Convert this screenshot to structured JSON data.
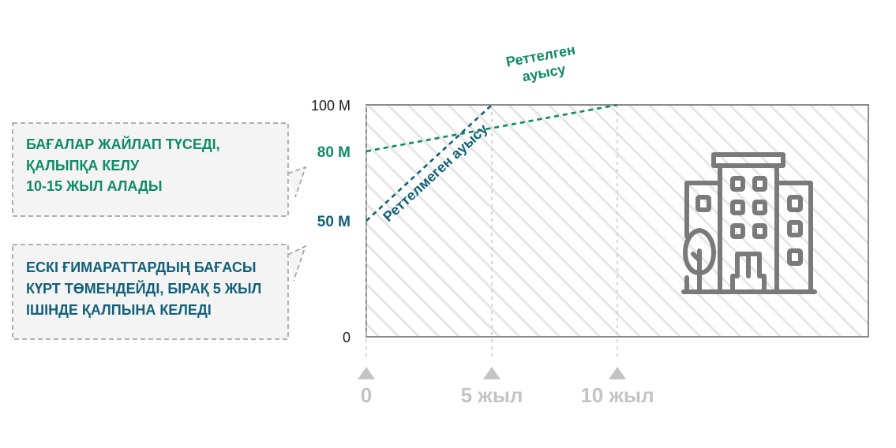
{
  "colors": {
    "adjusted": "#0f8a68",
    "unadjusted": "#12607a",
    "axis": "#8c8c8c",
    "hatch": "#e5e5e5",
    "tick_muted": "#c4c4c4",
    "icon": "#7a7a7a",
    "callout_bg": "#f4f4f4",
    "callout_border": "#9a9a9a"
  },
  "icons": {
    "building": "building-icon",
    "time_marker": "triangle-up-icon"
  },
  "callouts": [
    {
      "color_key": "adjusted",
      "lines": [
        "БАҒАЛАР ЖАЙЛАП ТҮСЕДІ,",
        "ҚАЛЫПҚА КЕЛУ",
        "10-15 ЖЫЛ АЛАДЫ"
      ]
    },
    {
      "color_key": "unadjusted",
      "lines": [
        "ЕСКІ ҒИМАРАТТАРДЫҢ БАҒАСЫ",
        "КҮРТ ТӨМЕНДЕЙДІ, БІРАҚ 5 ЖЫЛ",
        "ІШІНДЕ ҚАЛПЫНА КЕЛЕДІ"
      ]
    }
  ],
  "chart_data": {
    "type": "line",
    "title": "",
    "xlabel": "",
    "ylabel": "",
    "xlim": [
      0,
      20
    ],
    "ylim": [
      0,
      100
    ],
    "grid": true,
    "x_ticks": [
      {
        "value": 0,
        "label": "0"
      },
      {
        "value": 5,
        "label": "5 жыл"
      },
      {
        "value": 10,
        "label": "10 жыл"
      }
    ],
    "y_ticks": [
      {
        "value": 0,
        "label": "0",
        "color_key": "dark"
      },
      {
        "value": 50,
        "label": "50 M",
        "color_key": "unadjusted"
      },
      {
        "value": 80,
        "label": "80 M",
        "color_key": "adjusted"
      },
      {
        "value": 100,
        "label": "100 M",
        "color_key": "dark"
      }
    ],
    "series": [
      {
        "name": "Реттелген ауысу",
        "label_lines": [
          "Реттелген",
          "ауысу"
        ],
        "color_key": "adjusted",
        "x": [
          0,
          10
        ],
        "y": [
          80,
          100
        ]
      },
      {
        "name": "Реттелмеген ауысу",
        "label_lines": [
          "Реттелмеген ауысу"
        ],
        "color_key": "unadjusted",
        "x": [
          0,
          5
        ],
        "y": [
          50,
          100
        ]
      }
    ]
  }
}
